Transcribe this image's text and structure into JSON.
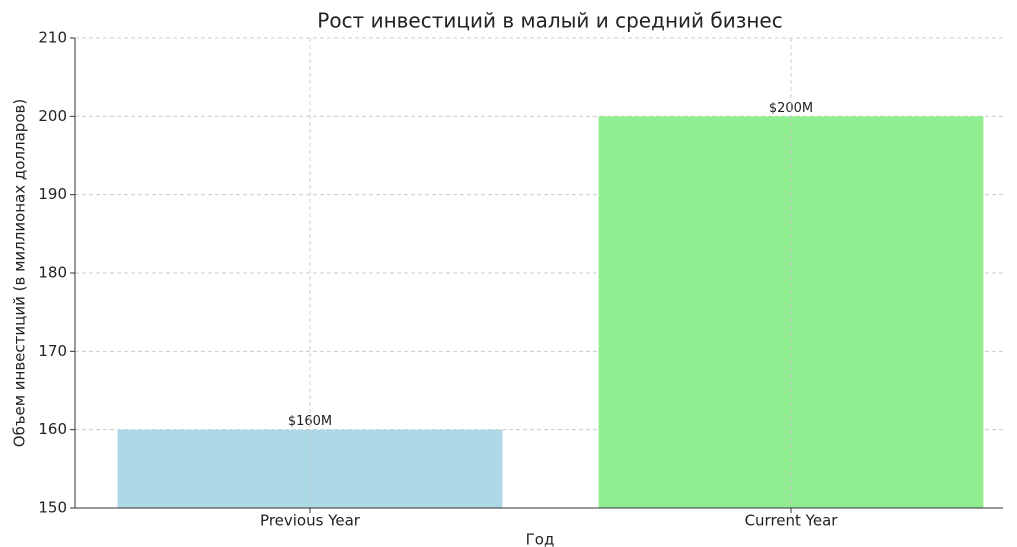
{
  "chart_data": {
    "type": "bar",
    "title": "Рост инвестиций в малый и средний бизнес",
    "x_label": "Год",
    "y_label": "Объем инвестиций (в миллионах долларов)",
    "categories": [
      "Previous Year",
      "Current Year"
    ],
    "values": [
      160,
      200
    ],
    "value_labels": [
      "$160M",
      "$200M"
    ],
    "colors": [
      "#add8e6",
      "#90ee90"
    ],
    "ylim": [
      150,
      210
    ],
    "yticks": [
      150,
      160,
      170,
      180,
      190,
      200,
      210
    ],
    "grid": true
  }
}
